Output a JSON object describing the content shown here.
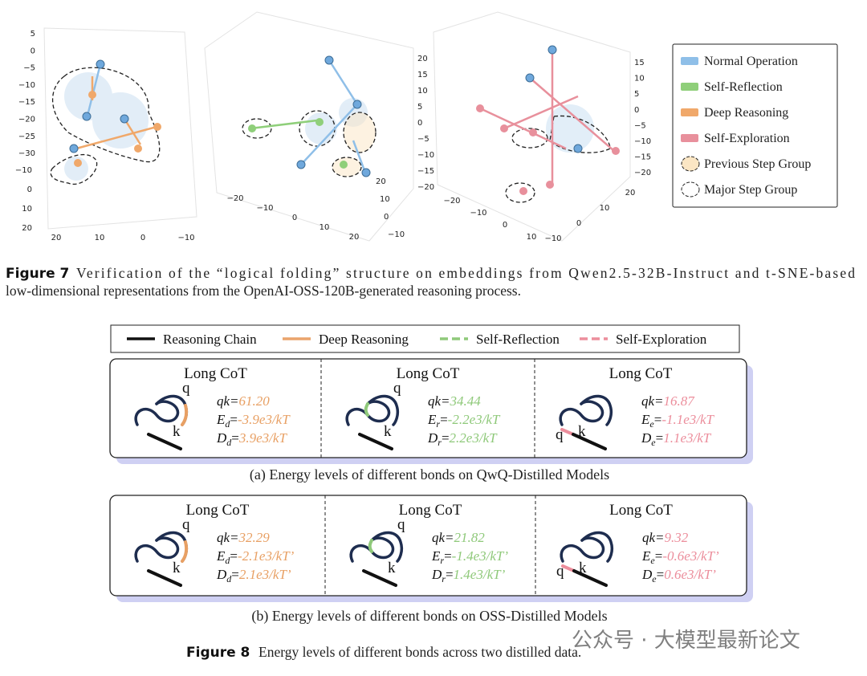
{
  "figure7": {
    "plots": [
      {
        "axes": [
          [
            "5",
            "0",
            "−5",
            "−10",
            "−15",
            "−20",
            "−25",
            "−30"
          ],
          [
            "−10",
            "0",
            "10",
            "20"
          ],
          [
            "20",
            "10",
            "0",
            "−10"
          ]
        ]
      },
      {
        "axes": [
          [
            "20",
            "15",
            "10",
            "5",
            "0",
            "−5",
            "−10",
            "−15",
            "−20"
          ],
          [
            "−20",
            "−10",
            "0",
            "10",
            "20"
          ],
          [
            "20",
            "10",
            "0",
            "−10"
          ]
        ]
      },
      {
        "axes": [
          [
            "15",
            "10",
            "5",
            "0",
            "−5",
            "−10",
            "−15",
            "−20"
          ],
          [
            "−20",
            "−10",
            "0",
            "10"
          ],
          [
            "20",
            "10",
            "0",
            "−10"
          ]
        ]
      }
    ],
    "legend": [
      "Normal Operation",
      "Self-Reflection",
      "Deep Reasoning",
      "Self-Exploration",
      "Previous Step Group",
      "Major Step Group"
    ],
    "caption": {
      "label": "Figure 7",
      "lines": [
        "Verification of the “logical folding” structure on embeddings from Qwen2.5-32B-Instruct and t-SNE-based",
        "low-dimensional representations from the OpenAI-OSS-120B-generated reasoning process."
      ]
    }
  },
  "figure8": {
    "legend": [
      "Reasoning Chain",
      "Deep Reasoning",
      "Self-Reflection",
      "Self-Exploration"
    ],
    "qk_label": "qk=",
    "e_label": "E",
    "d_label": "D",
    "eq": "=",
    "q": "q",
    "k": "k",
    "panels": [
      {
        "cells": [
          {
            "title": "Long CoT",
            "sub": "d",
            "qk": "61.20",
            "energy": "-3.9e3/kT",
            "depth": "3.9e3/kT"
          },
          {
            "title": "Long CoT",
            "sub": "r",
            "qk": "34.44",
            "energy": "-2.2e3/kT",
            "depth": "2.2e3/kT"
          },
          {
            "title": "Long CoT",
            "sub": "e",
            "qk": "16.87",
            "energy": "-1.1e3/kT",
            "depth": "1.1e3/kT"
          }
        ],
        "caption": "(a) Energy levels of different bonds on QwQ-Distilled Models"
      },
      {
        "cells": [
          {
            "title": "Long CoT",
            "sub": "d",
            "qk": "32.29",
            "energy": "-2.1e3/kT’",
            "depth": "2.1e3/kT’"
          },
          {
            "title": "Long CoT",
            "sub": "r",
            "qk": "21.82",
            "energy": "-1.4e3/kT’",
            "depth": "1.4e3/kT’"
          },
          {
            "title": "Long CoT",
            "sub": "e",
            "qk": "9.32",
            "energy": "-0.6e3/kT’",
            "depth": "0.6e3/kT’"
          }
        ],
        "caption": "(b) Energy levels of different bonds on OSS-Distilled Models"
      }
    ],
    "caption": {
      "label": "Figure 8",
      "text": "Energy levels of different bonds across two distilled data."
    }
  },
  "watermark": "公众号 · 大模型最新论文"
}
